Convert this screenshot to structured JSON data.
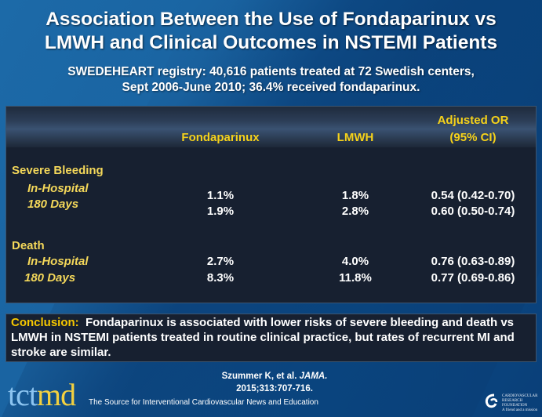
{
  "title": {
    "line1": "Association Between the Use of Fondaparinux vs",
    "line2": "LMWH and Clinical Outcomes in NSTEMI Patients"
  },
  "subtitle": {
    "line1": "SWEDEHEART registry: 40,616 patients treated at 72 Swedish centers,",
    "line2": "Sept 2006-June 2010; 36.4% received fondaparinux."
  },
  "table": {
    "headers": {
      "fondaparinux": "Fondaparinux",
      "lmwh": "LMWH",
      "or_line1": "Adjusted OR",
      "or_line2": "(95% CI)"
    },
    "groups": [
      {
        "label": "Severe Bleeding",
        "rows": [
          {
            "label": "In-Hospital",
            "fondaparinux": "1.1%",
            "lmwh": "1.8%",
            "or": "0.54 (0.42-0.70)"
          },
          {
            "label": "180 Days",
            "fondaparinux": "1.9%",
            "lmwh": "2.8%",
            "or": "0.60 (0.50-0.74)"
          }
        ]
      },
      {
        "label": "Death",
        "rows": [
          {
            "label": "In-Hospital",
            "fondaparinux": "2.7%",
            "lmwh": "4.0%",
            "or": "0.76 (0.63-0.89)"
          },
          {
            "label": "180 Days",
            "fondaparinux": "8.3%",
            "lmwh": "11.8%",
            "or": "0.77 (0.69-0.86)"
          }
        ]
      }
    ]
  },
  "conclusion": {
    "label": "Conclusion:",
    "text": "Fondaparinux is associated with lower risks of severe bleeding and death vs LMWH in NSTEMI patients treated in routine clinical practice, but rates of recurrent MI and stroke are similar."
  },
  "citation": {
    "line1_authors": "Szummer K, et al.",
    "line1_journal": "JAMA.",
    "line2": "2015;313:707-716."
  },
  "footer": {
    "logo_tct": "tct",
    "logo_md": "md",
    "tagline": "The Source for Interventional Cardiovascular News and Education",
    "crf_line1": "CARDIOVASCULAR",
    "crf_line2": "RESEARCH",
    "crf_line3": "FOUNDATION",
    "crf_line4": "A friend and a mission"
  },
  "colors": {
    "accent_yellow": "#f6d21a",
    "background_blue": "#0f4f8c",
    "panel": "#172030"
  }
}
